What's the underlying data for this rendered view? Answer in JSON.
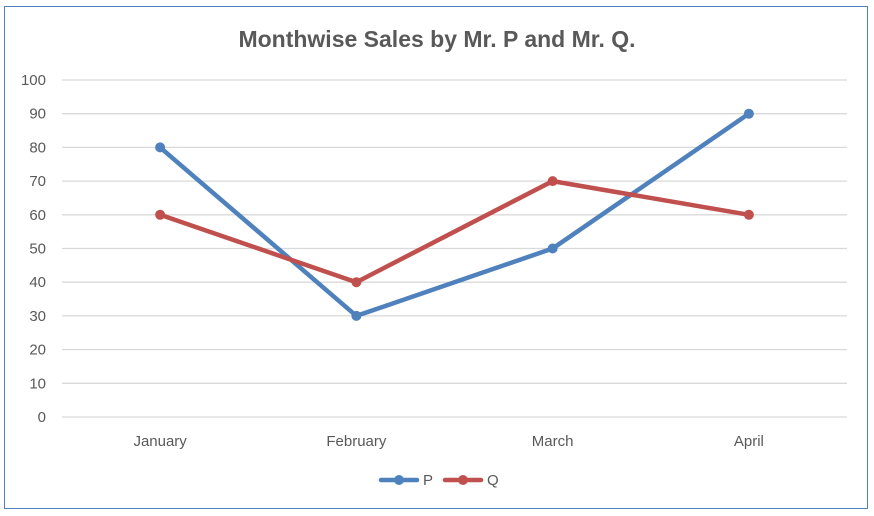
{
  "chart_data": {
    "type": "line",
    "title": "Monthwise Sales by Mr. P and Mr. Q.",
    "categories": [
      "January",
      "February",
      "March",
      "April"
    ],
    "series": [
      {
        "name": "P",
        "values": [
          80,
          30,
          50,
          90
        ],
        "color": "#4f81bd"
      },
      {
        "name": "Q",
        "values": [
          60,
          40,
          70,
          60
        ],
        "color": "#c0504d"
      }
    ],
    "ylim": [
      0,
      100
    ],
    "yticks": [
      0,
      10,
      20,
      30,
      40,
      50,
      60,
      70,
      80,
      90,
      100
    ],
    "grid": true,
    "legend": "bottom"
  }
}
